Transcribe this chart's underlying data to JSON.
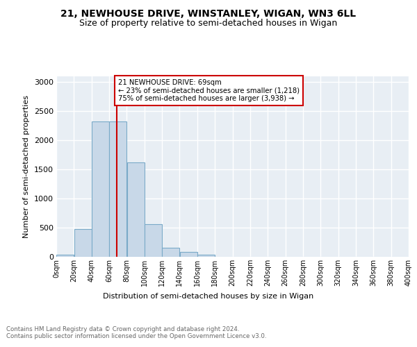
{
  "title1": "21, NEWHOUSE DRIVE, WINSTANLEY, WIGAN, WN3 6LL",
  "title2": "Size of property relative to semi-detached houses in Wigan",
  "xlabel": "Distribution of semi-detached houses by size in Wigan",
  "ylabel": "Number of semi-detached properties",
  "footnote": "Contains HM Land Registry data © Crown copyright and database right 2024.\nContains public sector information licensed under the Open Government Licence v3.0.",
  "bin_edges": [
    0,
    20,
    40,
    60,
    80,
    100,
    120,
    140,
    160,
    180,
    200,
    220,
    240,
    260,
    280,
    300,
    320,
    340,
    360,
    380,
    400
  ],
  "bar_values": [
    30,
    480,
    2320,
    2320,
    1620,
    560,
    150,
    85,
    40,
    0,
    0,
    0,
    0,
    0,
    0,
    0,
    0,
    0,
    0,
    0
  ],
  "bar_color": "#c8d8e8",
  "bar_edge_color": "#7aaac8",
  "property_size": 69,
  "property_label": "21 NEWHOUSE DRIVE: 69sqm",
  "pct_smaller": 23,
  "count_smaller": 1218,
  "pct_larger": 75,
  "count_larger": 3938,
  "vline_color": "#cc0000",
  "annotation_box_edge_color": "#cc0000",
  "ylim": [
    0,
    3100
  ],
  "yticks": [
    0,
    500,
    1000,
    1500,
    2000,
    2500,
    3000
  ],
  "background_color": "#e8eef4",
  "grid_color": "#ffffff",
  "title_fontsize": 10,
  "subtitle_fontsize": 9,
  "footnote_color": "#666666"
}
